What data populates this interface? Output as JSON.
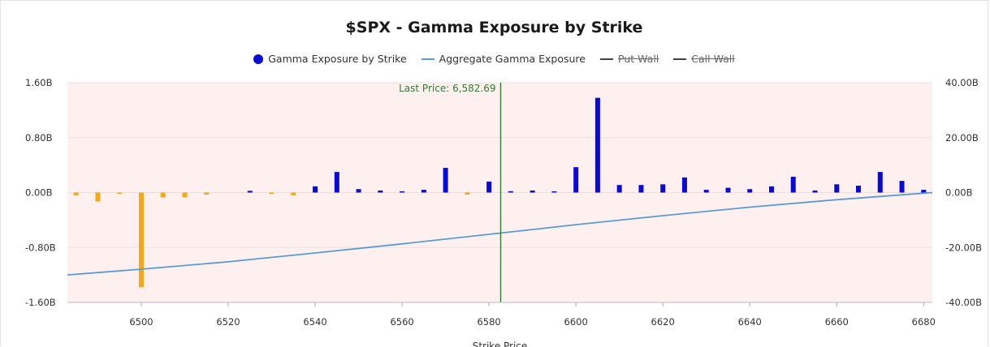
{
  "chart_data": {
    "type": "bar",
    "title": "$SPX - Gamma Exposure by Strike",
    "xlabel": "Strike Price",
    "xlim": [
      6483,
      6682
    ],
    "x_ticks": [
      6500,
      6520,
      6540,
      6560,
      6580,
      6600,
      6620,
      6640,
      6660,
      6680
    ],
    "left_axis": {
      "ylim": [
        -1.6,
        1.6
      ],
      "ticks": [
        1.6,
        0.8,
        0.0,
        -0.8,
        -1.6
      ],
      "tick_labels": [
        "1.60B",
        "0.80B",
        "0.00B",
        "-0.80B",
        "-1.60B"
      ]
    },
    "right_axis": {
      "ylim": [
        -40,
        40
      ],
      "ticks": [
        40,
        20,
        0,
        -20,
        -40
      ],
      "tick_labels": [
        "40.00B",
        "20.00B",
        "0.00B",
        "-20.00B",
        "-40.00B"
      ]
    },
    "legend_position": "top-center",
    "legend": [
      {
        "name": "Gamma Exposure by Strike",
        "marker": "dot",
        "color": "#0a0ad6",
        "hidden": false
      },
      {
        "name": "Aggregate Gamma Exposure",
        "marker": "line",
        "color": "#5b9bd5",
        "hidden": false
      },
      {
        "name": "Put Wall",
        "marker": "line",
        "color": "#444444",
        "hidden": true
      },
      {
        "name": "Call Wall",
        "marker": "line",
        "color": "#444444",
        "hidden": true
      }
    ],
    "series": [
      {
        "name": "Gamma Exposure by Strike",
        "axis": "left",
        "positive_color": "#0a0ad6",
        "negative_color": "#f2a81d",
        "x": [
          6485,
          6490,
          6495,
          6500,
          6505,
          6510,
          6515,
          6520,
          6525,
          6530,
          6535,
          6540,
          6545,
          6550,
          6555,
          6560,
          6565,
          6570,
          6575,
          6580,
          6585,
          6590,
          6595,
          6600,
          6605,
          6610,
          6615,
          6620,
          6625,
          6630,
          6635,
          6640,
          6645,
          6650,
          6655,
          6660,
          6665,
          6670,
          6675,
          6680
        ],
        "values": [
          -0.04,
          -0.13,
          -0.01,
          -1.38,
          -0.07,
          -0.07,
          -0.03,
          0.0,
          0.025,
          -0.01,
          -0.04,
          0.09,
          0.3,
          0.05,
          0.03,
          0.01,
          0.04,
          0.36,
          -0.03,
          0.16,
          0.02,
          0.03,
          0.01,
          0.37,
          1.38,
          0.11,
          0.11,
          0.12,
          0.22,
          0.04,
          0.07,
          0.05,
          0.09,
          0.23,
          0.03,
          0.12,
          0.1,
          0.3,
          0.17,
          0.04
        ]
      },
      {
        "name": "Aggregate Gamma Exposure",
        "axis": "right",
        "type": "line",
        "color": "#5b9bd5",
        "x": [
          6483,
          6500,
          6520,
          6540,
          6560,
          6580,
          6600,
          6620,
          6640,
          6660,
          6682
        ],
        "values": [
          -30.0,
          -27.9,
          -25.2,
          -22.0,
          -18.7,
          -15.2,
          -11.7,
          -8.4,
          -5.3,
          -2.6,
          0.0
        ]
      }
    ],
    "annotations": [
      {
        "type": "vline",
        "x": 6582.69,
        "label": "Last Price: 6,582.69",
        "color": "#2e7d32"
      }
    ],
    "grid": true,
    "colors": {
      "plot_background": "#fff0f0",
      "gridline": "#e4e4e4"
    }
  }
}
